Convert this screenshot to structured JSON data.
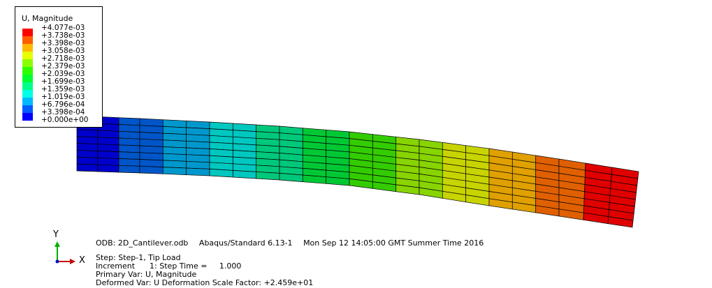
{
  "legend": {
    "title": "U, Magnitude",
    "colors": [
      "#ff0000",
      "#ff5d00",
      "#ffb900",
      "#e6ff00",
      "#8aff00",
      "#2eff00",
      "#00ff2e",
      "#00ff8a",
      "#00ffe6",
      "#00b9ff",
      "#005dff",
      "#0000ff"
    ],
    "values": [
      "+4.077e-03",
      "+3.738e-03",
      "+3.398e-03",
      "+3.058e-03",
      "+2.718e-03",
      "+2.379e-03",
      "+2.039e-03",
      "+1.699e-03",
      "+1.359e-03",
      "+1.019e-03",
      "+6.796e-04",
      "+3.398e-04",
      "+0.000e+00"
    ]
  },
  "mesh": {
    "columns": 24,
    "rows": 8,
    "display_colors": [
      "#0000cc",
      "#0055c8",
      "#0098cc",
      "#00c8c0",
      "#00c87a",
      "#00c834",
      "#33cc00",
      "#88d400",
      "#c8d400",
      "#e0a000",
      "#e06000",
      "#e00000"
    ]
  },
  "info": {
    "odb_file": "ODB: 2D_Cantilever.odb",
    "solver": "Abaqus/Standard 6.13-1",
    "timestamp": "Mon Sep 12 14:05:00 GMT Summer Time 2016",
    "step": "Step: Step-1, Tip Load",
    "increment": "Increment      1: Step Time =     1.000",
    "primary_var": "Primary Var: U, Magnitude",
    "deformed_var": "Deformed Var: U   Deformation Scale Factor: +2.459e+01"
  },
  "triad": {
    "x_label": "X",
    "y_label": "Y"
  }
}
